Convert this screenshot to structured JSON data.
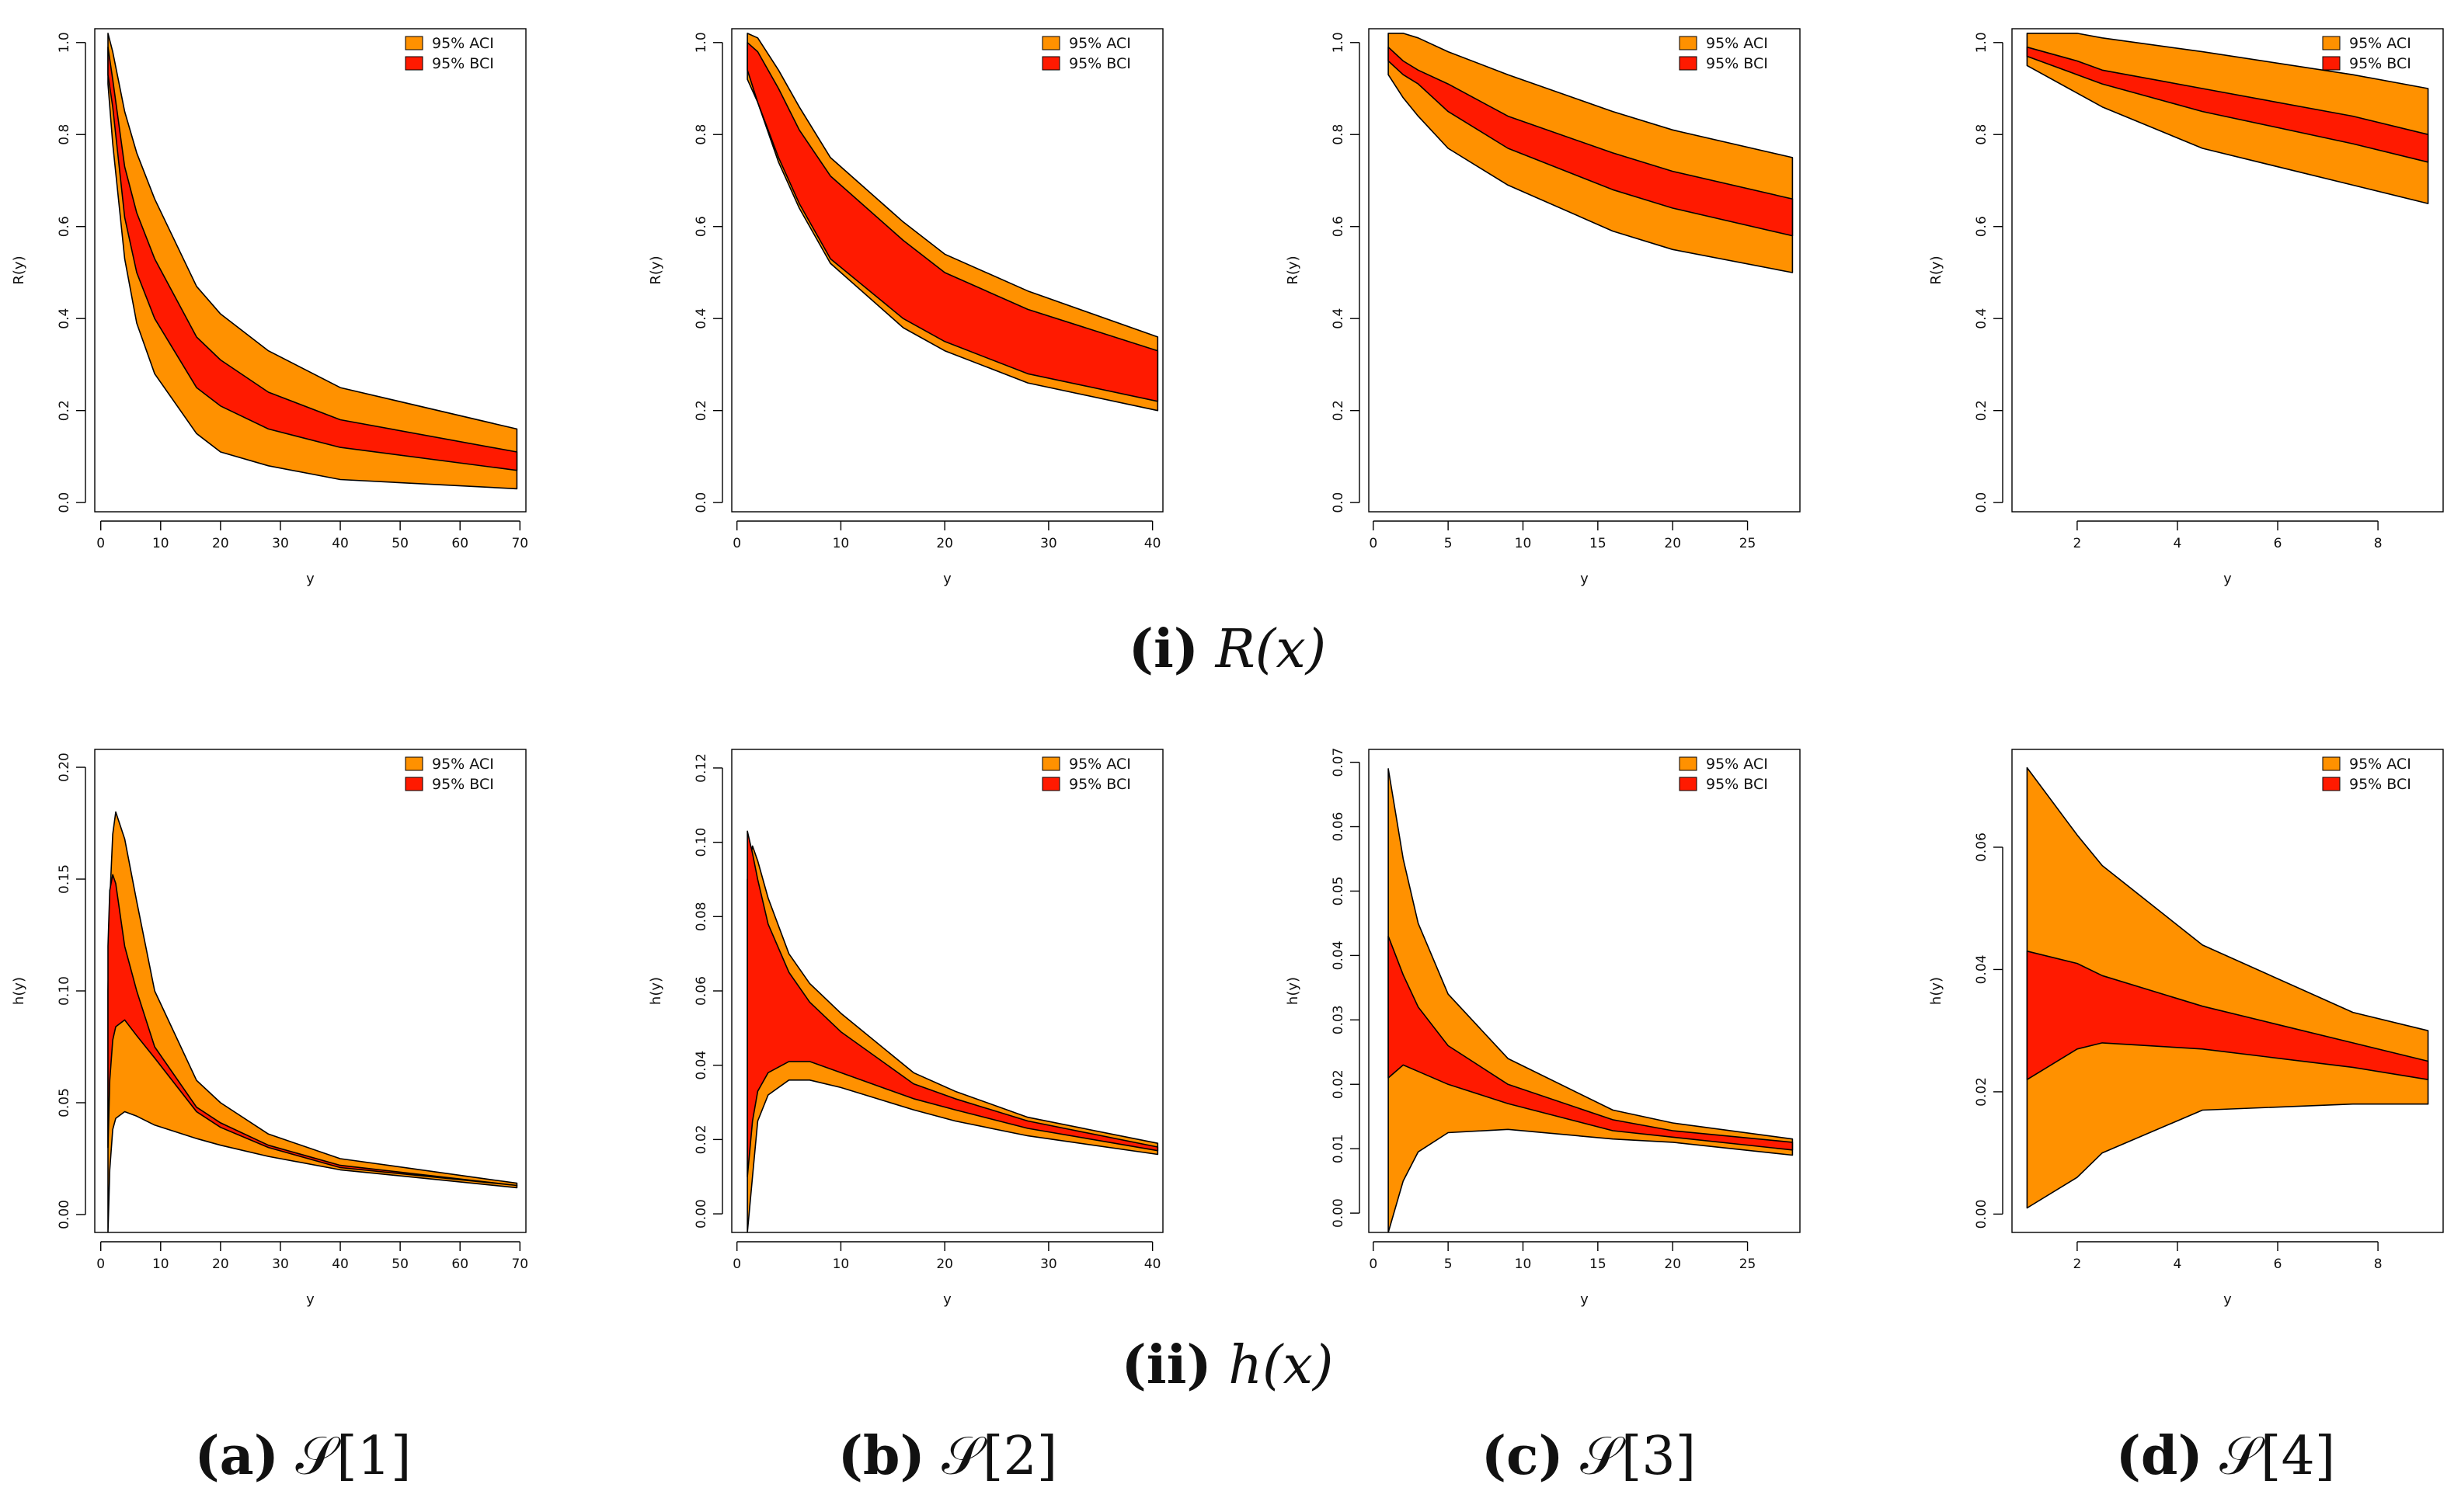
{
  "colors": {
    "aci": "#FF9100",
    "bci": "#FF1A00",
    "stroke": "#000000"
  },
  "row_captions": [
    {
      "label": "(i)",
      "math": "R(x)"
    },
    {
      "label": "(ii)",
      "math": "h(x)"
    }
  ],
  "col_captions": [
    {
      "label": "(a)",
      "math": "𝒮[1]"
    },
    {
      "label": "(b)",
      "math": "𝒮[2]"
    },
    {
      "label": "(c)",
      "math": "𝒮[3]"
    },
    {
      "label": "(d)",
      "math": "𝒮[4]"
    }
  ],
  "chart_data": [
    {
      "type": "area",
      "id": "R-S1",
      "xlabel": "y",
      "ylabel": "R(y)",
      "xlim": [
        -1,
        71
      ],
      "ylim": [
        -0.02,
        1.03
      ],
      "xticks": [
        0,
        10,
        20,
        30,
        40,
        50,
        60,
        70
      ],
      "yticks": [
        "0.0",
        "0.2",
        "0.4",
        "0.6",
        "0.8",
        "1.0"
      ],
      "legend": [
        "95% ACI",
        "95% BCI"
      ],
      "legend_position": "top-right",
      "x": [
        1.2,
        2,
        4,
        6,
        9,
        16,
        20,
        28,
        40,
        69.5
      ],
      "aci_upper": [
        1.02,
        0.98,
        0.85,
        0.76,
        0.66,
        0.47,
        0.41,
        0.33,
        0.25,
        0.16
      ],
      "aci_lower": [
        0.91,
        0.78,
        0.53,
        0.39,
        0.28,
        0.15,
        0.11,
        0.08,
        0.05,
        0.03
      ],
      "bci_upper": [
        0.99,
        0.92,
        0.73,
        0.63,
        0.53,
        0.36,
        0.31,
        0.24,
        0.18,
        0.11
      ],
      "bci_lower": [
        0.93,
        0.86,
        0.62,
        0.5,
        0.4,
        0.25,
        0.21,
        0.16,
        0.12,
        0.07
      ]
    },
    {
      "type": "area",
      "id": "R-S2",
      "xlabel": "y",
      "ylabel": "R(y)",
      "xlim": [
        -0.5,
        41
      ],
      "ylim": [
        -0.02,
        1.03
      ],
      "xticks": [
        0,
        10,
        20,
        30,
        40
      ],
      "yticks": [
        "0.0",
        "0.2",
        "0.4",
        "0.6",
        "0.8",
        "1.0"
      ],
      "legend": [
        "95% ACI",
        "95% BCI"
      ],
      "legend_position": "top-right",
      "x": [
        1,
        2,
        4,
        6,
        9,
        16,
        20,
        28,
        40.5
      ],
      "aci_upper": [
        1.02,
        1.01,
        0.94,
        0.86,
        0.75,
        0.61,
        0.54,
        0.46,
        0.36
      ],
      "aci_lower": [
        0.92,
        0.87,
        0.74,
        0.64,
        0.52,
        0.38,
        0.33,
        0.26,
        0.2
      ],
      "bci_upper": [
        1.0,
        0.98,
        0.9,
        0.81,
        0.71,
        0.57,
        0.5,
        0.42,
        0.33
      ],
      "bci_lower": [
        0.94,
        0.87,
        0.75,
        0.65,
        0.53,
        0.4,
        0.35,
        0.28,
        0.22
      ]
    },
    {
      "type": "area",
      "id": "R-S3",
      "xlabel": "y",
      "ylabel": "R(y)",
      "xlim": [
        -0.3,
        28.5
      ],
      "ylim": [
        -0.02,
        1.03
      ],
      "xticks": [
        0,
        5,
        10,
        15,
        20,
        25
      ],
      "yticks": [
        "0.0",
        "0.2",
        "0.4",
        "0.6",
        "0.8",
        "1.0"
      ],
      "legend": [
        "95% ACI",
        "95% BCI"
      ],
      "legend_position": "top-right",
      "x": [
        1,
        2,
        3,
        5,
        9,
        16,
        20,
        28
      ],
      "aci_upper": [
        1.02,
        1.02,
        1.01,
        0.98,
        0.93,
        0.85,
        0.81,
        0.75
      ],
      "aci_lower": [
        0.93,
        0.88,
        0.84,
        0.77,
        0.69,
        0.59,
        0.55,
        0.5
      ],
      "bci_upper": [
        0.99,
        0.96,
        0.94,
        0.91,
        0.84,
        0.76,
        0.72,
        0.66
      ],
      "bci_lower": [
        0.96,
        0.93,
        0.91,
        0.85,
        0.77,
        0.68,
        0.64,
        0.58
      ]
    },
    {
      "type": "area",
      "id": "R-S4",
      "xlabel": "y",
      "ylabel": "R(y)",
      "xlim": [
        0.7,
        9.3
      ],
      "ylim": [
        -0.02,
        1.03
      ],
      "xticks": [
        2,
        4,
        6,
        8
      ],
      "yticks": [
        "0.0",
        "0.2",
        "0.4",
        "0.6",
        "0.8",
        "1.0"
      ],
      "legend": [
        "95% ACI",
        "95% BCI"
      ],
      "legend_position": "top-right",
      "x": [
        1,
        2,
        2.5,
        4.5,
        7.5,
        9
      ],
      "aci_upper": [
        1.02,
        1.02,
        1.01,
        0.98,
        0.93,
        0.9
      ],
      "aci_lower": [
        0.95,
        0.89,
        0.86,
        0.77,
        0.69,
        0.65
      ],
      "bci_upper": [
        0.99,
        0.96,
        0.94,
        0.9,
        0.84,
        0.8
      ],
      "bci_lower": [
        0.97,
        0.93,
        0.91,
        0.85,
        0.78,
        0.74
      ]
    },
    {
      "type": "area",
      "id": "h-S1",
      "xlabel": "y",
      "ylabel": "h(y)",
      "xlim": [
        -1,
        71
      ],
      "ylim": [
        -0.008,
        0.208
      ],
      "xticks": [
        0,
        10,
        20,
        30,
        40,
        50,
        60,
        70
      ],
      "yticks": [
        "0.00",
        "0.05",
        "0.10",
        "0.15",
        "0.20"
      ],
      "legend": [
        "95% ACI",
        "95% BCI"
      ],
      "legend_position": "top-right",
      "x": [
        1.2,
        1.5,
        2,
        2.5,
        4,
        6,
        9,
        16,
        20,
        28,
        40,
        69.5
      ],
      "aci_upper": [
        0.1,
        0.14,
        0.17,
        0.18,
        0.168,
        0.14,
        0.1,
        0.06,
        0.05,
        0.036,
        0.025,
        0.014
      ],
      "aci_lower": [
        -0.008,
        0.02,
        0.038,
        0.043,
        0.046,
        0.044,
        0.04,
        0.034,
        0.031,
        0.026,
        0.02,
        0.012
      ],
      "bci_upper": [
        0.12,
        0.145,
        0.152,
        0.148,
        0.12,
        0.1,
        0.075,
        0.048,
        0.041,
        0.031,
        0.022,
        0.013
      ],
      "bci_lower": [
        0.03,
        0.06,
        0.078,
        0.084,
        0.087,
        0.08,
        0.07,
        0.046,
        0.039,
        0.03,
        0.021,
        0.013
      ]
    },
    {
      "type": "area",
      "id": "h-S2",
      "xlabel": "y",
      "ylabel": "h(y)",
      "xlim": [
        -0.5,
        41
      ],
      "ylim": [
        -0.005,
        0.125
      ],
      "xticks": [
        0,
        10,
        20,
        30,
        40
      ],
      "yticks": [
        "0.00",
        "0.02",
        "0.04",
        "0.06",
        "0.08",
        "0.10",
        "0.12"
      ],
      "legend": [
        "95% ACI",
        "95% BCI"
      ],
      "legend_position": "top-right",
      "x": [
        1,
        1.5,
        2,
        3,
        5,
        7,
        10,
        17,
        21,
        28,
        40.5
      ],
      "aci_upper": [
        0.09,
        0.099,
        0.095,
        0.085,
        0.07,
        0.062,
        0.054,
        0.038,
        0.033,
        0.026,
        0.019
      ],
      "aci_lower": [
        -0.005,
        0.01,
        0.025,
        0.032,
        0.036,
        0.036,
        0.034,
        0.028,
        0.025,
        0.021,
        0.016
      ],
      "bci_upper": [
        0.103,
        0.097,
        0.09,
        0.078,
        0.065,
        0.057,
        0.049,
        0.035,
        0.031,
        0.025,
        0.018
      ],
      "bci_lower": [
        0.01,
        0.025,
        0.033,
        0.038,
        0.041,
        0.041,
        0.038,
        0.031,
        0.028,
        0.023,
        0.017
      ]
    },
    {
      "type": "area",
      "id": "h-S3",
      "xlabel": "y",
      "ylabel": "h(y)",
      "xlim": [
        -0.3,
        28.5
      ],
      "ylim": [
        -0.003,
        0.072
      ],
      "xticks": [
        0,
        5,
        10,
        15,
        20,
        25
      ],
      "yticks": [
        "0.00",
        "0.01",
        "0.02",
        "0.03",
        "0.04",
        "0.05",
        "0.06",
        "0.07"
      ],
      "legend": [
        "95% ACI",
        "95% BCI"
      ],
      "legend_position": "top-right",
      "x": [
        1,
        2,
        3,
        5,
        9,
        16,
        20,
        28
      ],
      "aci_upper": [
        0.069,
        0.055,
        0.045,
        0.034,
        0.024,
        0.016,
        0.014,
        0.0115
      ],
      "aci_lower": [
        -0.003,
        0.005,
        0.0095,
        0.0125,
        0.013,
        0.0115,
        0.011,
        0.009
      ],
      "bci_upper": [
        0.043,
        0.037,
        0.032,
        0.026,
        0.02,
        0.0145,
        0.0128,
        0.011
      ],
      "bci_lower": [
        0.021,
        0.023,
        0.022,
        0.02,
        0.017,
        0.0128,
        0.0118,
        0.0098
      ]
    },
    {
      "type": "area",
      "id": "h-S4",
      "xlabel": "y",
      "ylabel": "h(y)",
      "xlim": [
        0.7,
        9.3
      ],
      "ylim": [
        -0.003,
        0.076
      ],
      "xticks": [
        2,
        4,
        6,
        8
      ],
      "yticks": [
        "0.00",
        "0.02",
        "0.04",
        "0.06"
      ],
      "legend": [
        "95% ACI",
        "95% BCI"
      ],
      "legend_position": "top-right",
      "x": [
        1,
        2,
        2.5,
        4.5,
        7.5,
        9
      ],
      "aci_upper": [
        0.073,
        0.062,
        0.057,
        0.044,
        0.033,
        0.03
      ],
      "aci_lower": [
        0.001,
        0.006,
        0.01,
        0.017,
        0.018,
        0.018
      ],
      "bci_upper": [
        0.043,
        0.041,
        0.039,
        0.034,
        0.028,
        0.025
      ],
      "bci_lower": [
        0.022,
        0.027,
        0.028,
        0.027,
        0.024,
        0.022
      ]
    }
  ]
}
